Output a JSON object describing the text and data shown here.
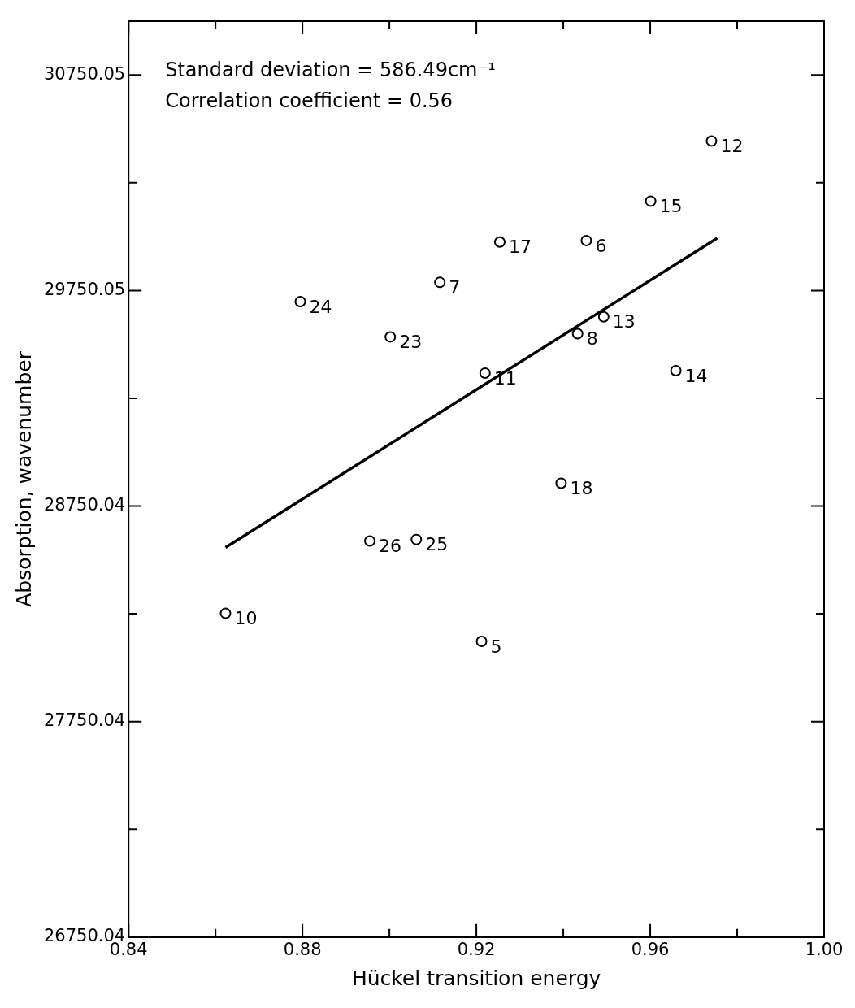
{
  "chart_data": {
    "type": "scatter",
    "xlabel": "Hückel transition energy",
    "ylabel": "Absorption, wavenumber",
    "xlim": [
      0.84,
      1.0
    ],
    "xticks": [
      0.84,
      {
        "value": 0.86,
        "label": null
      },
      0.88,
      {
        "value": 0.9,
        "label": null
      },
      0.92,
      {
        "value": 0.94,
        "label": null
      },
      0.96,
      {
        "value": 0.98,
        "label": null
      },
      {
        "value": 1.0,
        "label": "1.00"
      }
    ],
    "ylim": [
      26750.04,
      31000
    ],
    "yticks": [
      26750.04,
      {
        "value": 27250.04,
        "label": null
      },
      27750.04,
      {
        "value": 28250.04,
        "label": null
      },
      28750.04,
      {
        "value": 29250.04,
        "label": null
      },
      29750.05,
      {
        "value": 30250.05,
        "label": null
      },
      30750.05
    ],
    "series": [
      {
        "marker": "circle",
        "color": "#000000",
        "x": [
          0.9741,
          0.9601,
          0.9254,
          0.9453,
          0.9116,
          0.8795,
          0.9002,
          0.9493,
          0.9433,
          0.922,
          0.9659,
          0.9395,
          0.8955,
          0.9062,
          0.8623,
          0.9212
        ],
        "values": [
          30444,
          30165,
          29975,
          29982,
          29788,
          29699,
          29535,
          29628,
          29550,
          29367,
          29378,
          28856,
          28588,
          28595,
          28252,
          28122
        ]
      },
      {
        "type": "line",
        "color": "#000000",
        "x": [
          0.8623,
          0.9754
        ],
        "values": [
          28558,
          29993
        ]
      }
    ],
    "annotations": [
      "Standard deviation = 586.49cm⁻¹",
      "Correlation coefficient = 0.56",
      {
        "text": "12",
        "x": 0.9741,
        "y": 30444
      },
      {
        "text": "15",
        "x": 0.9601,
        "y": 30165
      },
      {
        "text": "17",
        "x": 0.9254,
        "y": 29975
      },
      {
        "text": "6",
        "x": 0.9453,
        "y": 29982
      },
      {
        "text": "7",
        "x": 0.9116,
        "y": 29788
      },
      {
        "text": "24",
        "x": 0.8795,
        "y": 29699
      },
      {
        "text": "23",
        "x": 0.9002,
        "y": 29535
      },
      {
        "text": "13",
        "x": 0.9493,
        "y": 29628
      },
      {
        "text": "8",
        "x": 0.9433,
        "y": 29550
      },
      {
        "text": "11",
        "x": 0.922,
        "y": 29367
      },
      {
        "text": "14",
        "x": 0.9659,
        "y": 29378
      },
      {
        "text": "18",
        "x": 0.9395,
        "y": 28856
      },
      {
        "text": "26",
        "x": 0.8955,
        "y": 28588
      },
      {
        "text": "25",
        "x": 0.9062,
        "y": 28595
      },
      {
        "text": "10",
        "x": 0.8623,
        "y": 28252
      },
      {
        "text": "5",
        "x": 0.9212,
        "y": 28122
      }
    ]
  }
}
